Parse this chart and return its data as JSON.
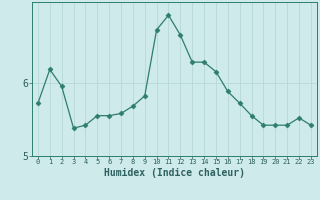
{
  "x": [
    0,
    1,
    2,
    3,
    4,
    5,
    6,
    7,
    8,
    9,
    10,
    11,
    12,
    13,
    14,
    15,
    16,
    17,
    18,
    19,
    20,
    21,
    22,
    23
  ],
  "y": [
    5.72,
    6.18,
    5.95,
    5.38,
    5.42,
    5.55,
    5.55,
    5.58,
    5.68,
    5.82,
    6.72,
    6.92,
    6.65,
    6.28,
    6.28,
    6.15,
    5.88,
    5.72,
    5.55,
    5.42,
    5.42,
    5.42,
    5.52,
    5.42
  ],
  "line_color": "#2e7d6e",
  "bg_color": "#ceeaea",
  "grid_color": "#b8d8d8",
  "axis_color": "#2e7d6e",
  "xlabel": "Humidex (Indice chaleur)",
  "ylim_min": 5.0,
  "ylim_max": 7.1,
  "xlim_min": -0.5,
  "xlim_max": 23.5,
  "yticks": [
    5,
    6
  ],
  "xticks": [
    0,
    1,
    2,
    3,
    4,
    5,
    6,
    7,
    8,
    9,
    10,
    11,
    12,
    13,
    14,
    15,
    16,
    17,
    18,
    19,
    20,
    21,
    22,
    23
  ],
  "font_color": "#2e6060",
  "tick_fontsize": 5.0,
  "ytick_fontsize": 7.0,
  "xlabel_fontsize": 7.0,
  "marker_size": 2.5,
  "linewidth": 0.9
}
